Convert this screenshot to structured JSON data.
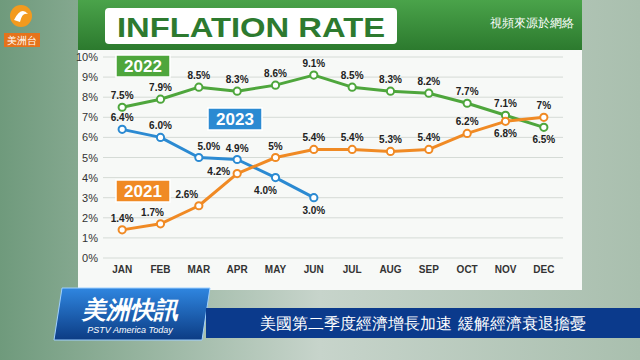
{
  "chart_data": {
    "type": "line",
    "title": "INFLATION RATE",
    "categories": [
      "JAN",
      "FEB",
      "MAR",
      "APR",
      "MAY",
      "JUN",
      "JUL",
      "AUG",
      "SEP",
      "OCT",
      "NOV",
      "DEC"
    ],
    "series": [
      {
        "name": "2022",
        "color": "#4ea63c",
        "marker": "circle",
        "values": [
          7.5,
          7.9,
          8.5,
          8.3,
          8.6,
          9.1,
          8.5,
          8.3,
          8.2,
          7.7,
          7.1,
          6.5
        ],
        "value_labels": [
          "7.5%",
          "7.9%",
          "8.5%",
          "8.3%",
          "8.6%",
          "9.1%",
          "8.5%",
          "8.3%",
          "8.2%",
          "7.7%",
          "7.1%",
          "6.5%"
        ]
      },
      {
        "name": "2023",
        "color": "#2b8ad2",
        "marker": "circle",
        "values": [
          6.4,
          6.0,
          5.0,
          4.9,
          4.0,
          3.0,
          null,
          null,
          null,
          null,
          null,
          null
        ],
        "value_labels": [
          "6.4%",
          "6.0%",
          "5.0%",
          "4.9%",
          "4.0%",
          "3.0%",
          null,
          null,
          null,
          null,
          null,
          null
        ]
      },
      {
        "name": "2021",
        "color": "#f08a24",
        "marker": "circle",
        "values": [
          1.4,
          1.7,
          2.6,
          4.2,
          5.0,
          5.4,
          5.4,
          5.3,
          5.4,
          6.2,
          6.8,
          7.0
        ],
        "value_labels": [
          "1.4%",
          "1.7%",
          "2.6%",
          "4.2%",
          "5%",
          "5.4%",
          "5.4%",
          "5.3%",
          "5.4%",
          "6.2%",
          "6.8%",
          "7%"
        ]
      }
    ],
    "ylim": [
      0,
      10
    ],
    "yticks": [
      {
        "value": 0,
        "label": "0%"
      },
      {
        "value": 1,
        "label": "1%"
      },
      {
        "value": 2,
        "label": "2%"
      },
      {
        "value": 3,
        "label": "3%"
      },
      {
        "value": 4,
        "label": "4%"
      },
      {
        "value": 5,
        "label": "5%"
      },
      {
        "value": 6,
        "label": "6%"
      },
      {
        "value": 7,
        "label": "7%"
      },
      {
        "value": 8,
        "label": "8%"
      },
      {
        "value": 9,
        "label": "9%"
      },
      {
        "value": 10,
        "label": "10%"
      }
    ],
    "grid": true,
    "data_labels": true
  },
  "broadcast": {
    "channel": "美洲台",
    "source_note": "視頻來源於網絡",
    "program": "美洲快訊",
    "program_en": "PSTV America Today",
    "headline": "美國第二季度經濟增長加速 緩解經濟衰退擔憂"
  }
}
